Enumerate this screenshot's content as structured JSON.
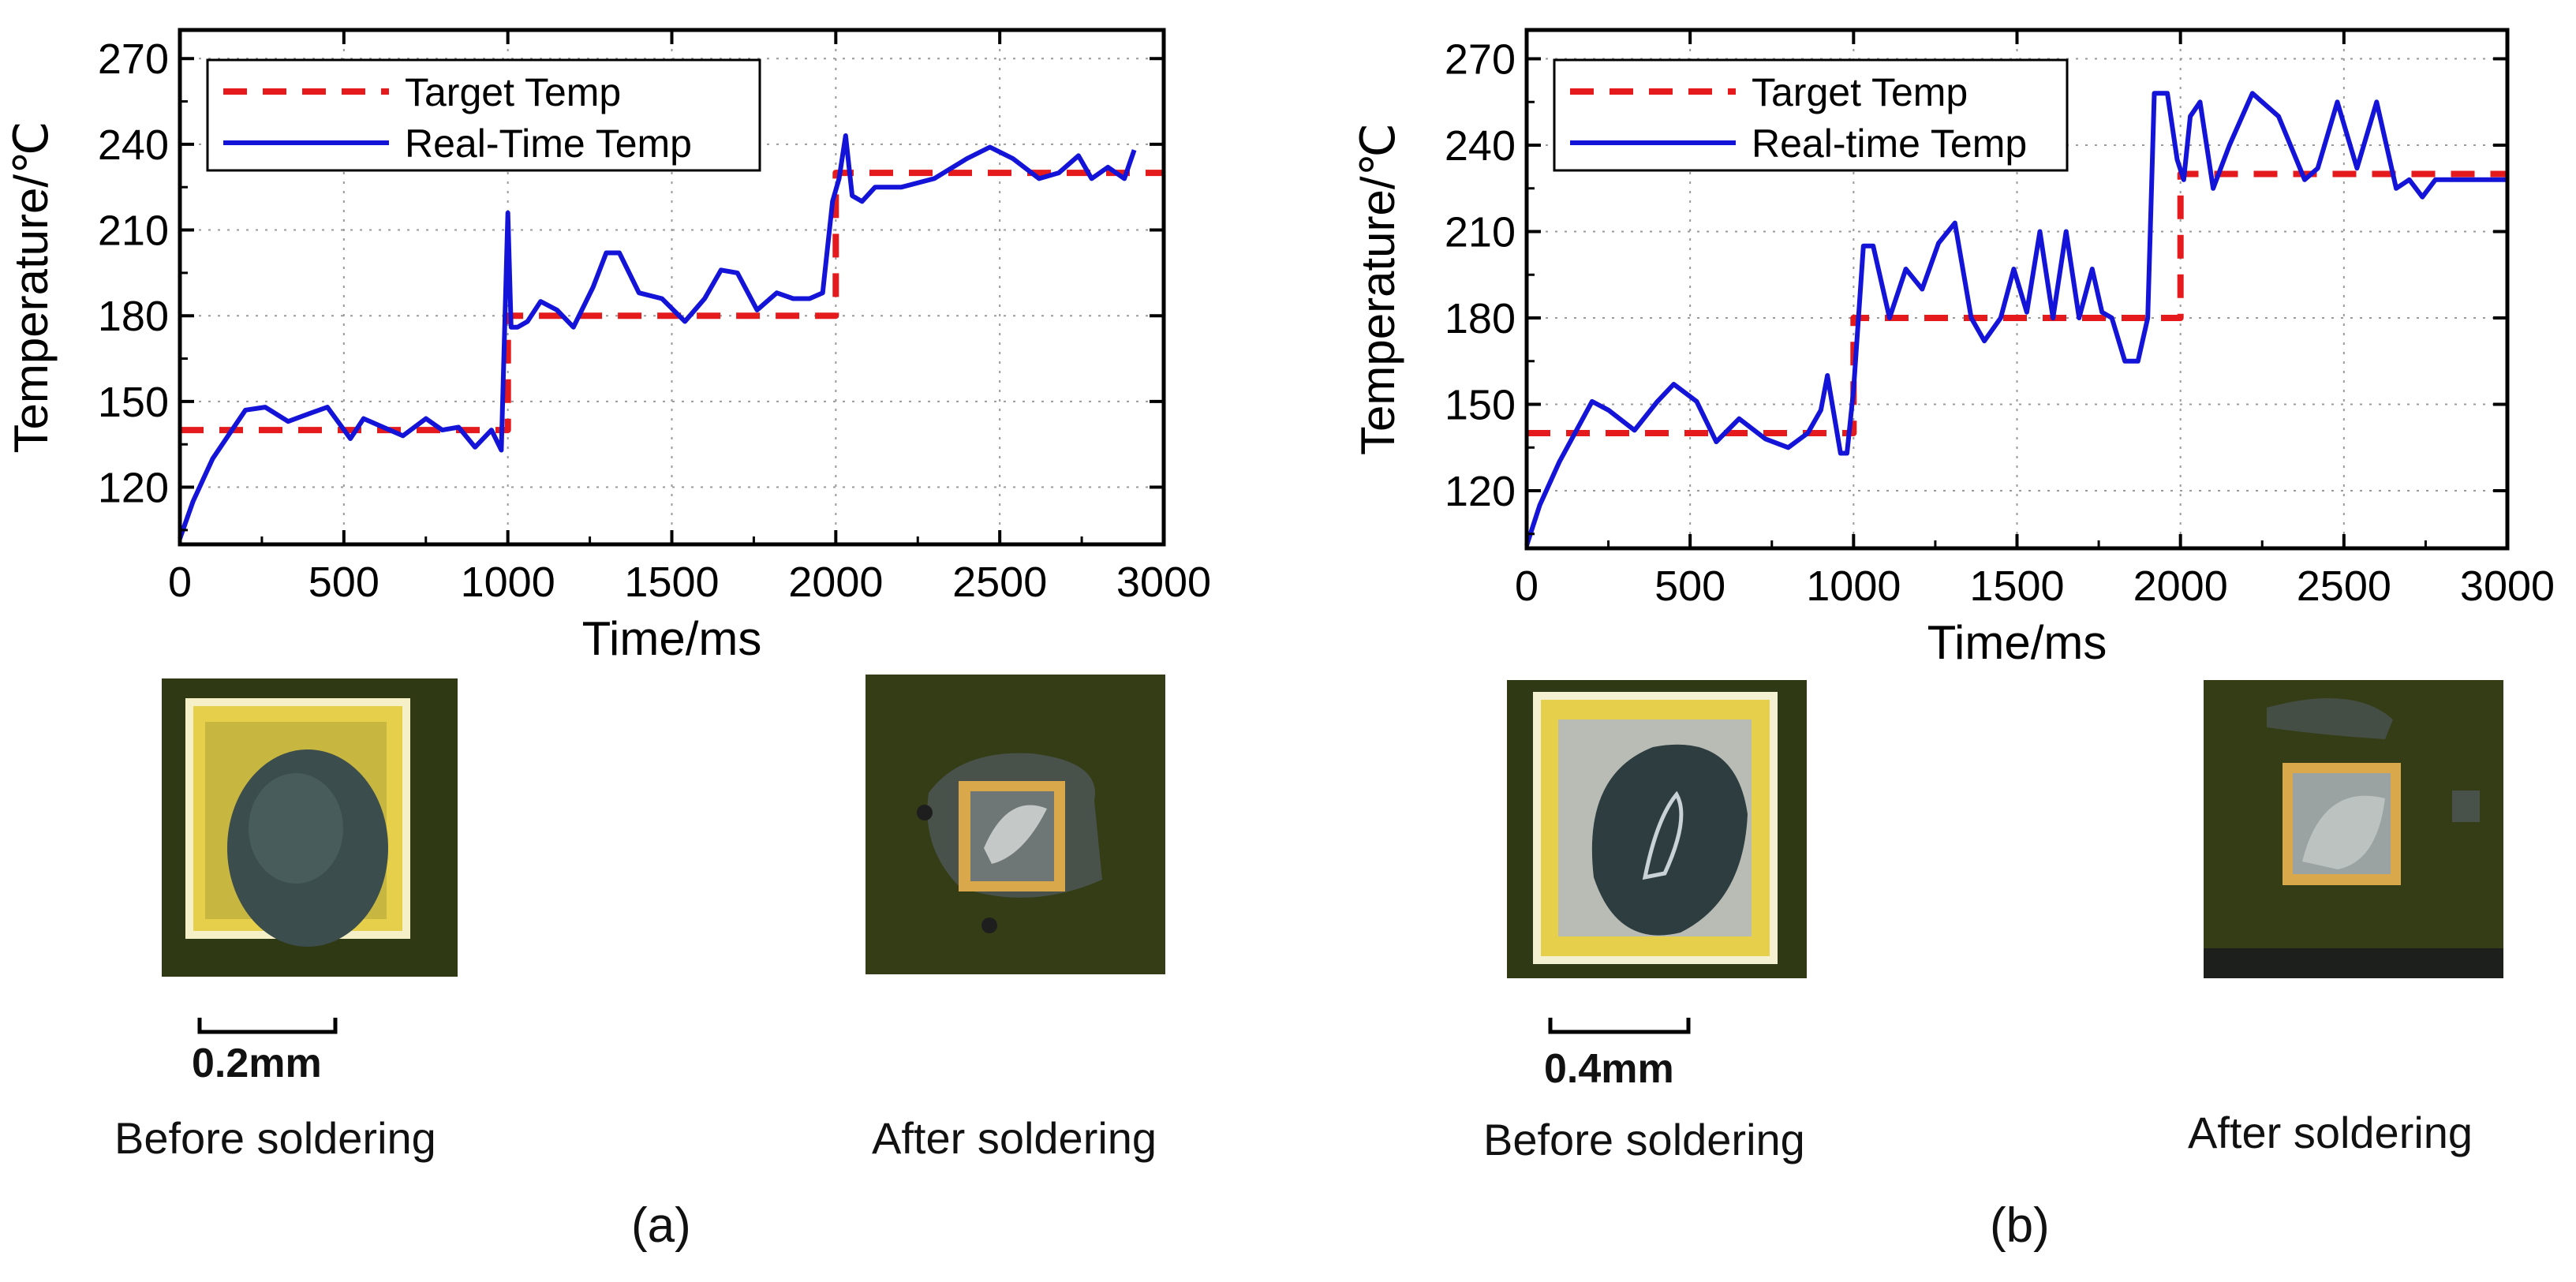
{
  "chart_data": [
    {
      "type": "line",
      "panel_label": "(a)",
      "xlabel": "Time/ms",
      "ylabel": "Temperature/℃",
      "xlim": [
        0,
        3000
      ],
      "ylim": [
        100,
        280
      ],
      "xticks": [
        0,
        500,
        1000,
        1500,
        2000,
        2500,
        3000
      ],
      "yticks": [
        120,
        150,
        180,
        210,
        240,
        270
      ],
      "grid": true,
      "legend_position": "top-left",
      "series": [
        {
          "name": "Target Temp",
          "style": "dashed",
          "color": "#e41a1c",
          "x": [
            0,
            1000,
            1000,
            2000,
            2000,
            3000
          ],
          "y": [
            140,
            140,
            180,
            180,
            230,
            230
          ]
        },
        {
          "name": "Real-Time Temp",
          "style": "solid",
          "color": "#1414d9",
          "x": [
            0,
            40,
            100,
            200,
            260,
            330,
            400,
            450,
            520,
            560,
            620,
            680,
            750,
            800,
            850,
            900,
            950,
            980,
            1000,
            1010,
            1030,
            1060,
            1100,
            1150,
            1200,
            1260,
            1300,
            1340,
            1400,
            1470,
            1540,
            1600,
            1650,
            1700,
            1760,
            1820,
            1870,
            1920,
            1960,
            1990,
            2010,
            2030,
            2050,
            2080,
            2120,
            2200,
            2300,
            2400,
            2470,
            2540,
            2620,
            2680,
            2740,
            2780,
            2830,
            2880,
            2910
          ],
          "y": [
            102,
            115,
            130,
            147,
            148,
            143,
            146,
            148,
            137,
            144,
            141,
            138,
            144,
            140,
            141,
            134,
            140,
            133,
            216,
            176,
            176,
            178,
            185,
            182,
            176,
            190,
            202,
            202,
            188,
            186,
            178,
            186,
            196,
            195,
            182,
            188,
            186,
            186,
            188,
            220,
            228,
            243,
            222,
            220,
            225,
            225,
            228,
            235,
            239,
            235,
            228,
            230,
            236,
            228,
            232,
            228,
            238
          ]
        }
      ]
    },
    {
      "type": "line",
      "panel_label": "(b)",
      "xlabel": "Time/ms",
      "ylabel": "Temperature/℃",
      "xlim": [
        0,
        3000
      ],
      "ylim": [
        100,
        280
      ],
      "xticks": [
        0,
        500,
        1000,
        1500,
        2000,
        2500,
        3000
      ],
      "yticks": [
        120,
        150,
        180,
        210,
        240,
        270
      ],
      "grid": true,
      "legend_position": "top-left",
      "series": [
        {
          "name": "Target Temp",
          "style": "dashed",
          "color": "#e41a1c",
          "x": [
            0,
            1000,
            1000,
            2000,
            2000,
            3000
          ],
          "y": [
            140,
            140,
            180,
            180,
            230,
            230
          ]
        },
        {
          "name": "Real-time Temp",
          "style": "solid",
          "color": "#1414d9",
          "x": [
            0,
            40,
            100,
            200,
            250,
            330,
            400,
            450,
            520,
            580,
            650,
            730,
            800,
            860,
            900,
            920,
            960,
            980,
            1000,
            1030,
            1060,
            1110,
            1160,
            1210,
            1260,
            1310,
            1360,
            1400,
            1450,
            1490,
            1530,
            1570,
            1610,
            1650,
            1690,
            1730,
            1760,
            1790,
            1830,
            1870,
            1900,
            1920,
            1960,
            1990,
            2010,
            2030,
            2060,
            2100,
            2150,
            2220,
            2300,
            2380,
            2420,
            2480,
            2540,
            2600,
            2660,
            2700,
            2740,
            2780,
            2820,
            2860,
            2900,
            3000
          ],
          "y": [
            101,
            115,
            130,
            151,
            148,
            141,
            151,
            157,
            151,
            137,
            145,
            138,
            135,
            140,
            148,
            160,
            133,
            133,
            155,
            205,
            205,
            180,
            197,
            190,
            206,
            213,
            180,
            172,
            180,
            197,
            182,
            210,
            180,
            210,
            180,
            197,
            182,
            180,
            165,
            165,
            180,
            258,
            258,
            235,
            228,
            250,
            255,
            225,
            240,
            258,
            250,
            228,
            232,
            255,
            232,
            255,
            225,
            228,
            222,
            228,
            228,
            228,
            228,
            228
          ]
        }
      ]
    }
  ],
  "photos": {
    "a_before": {
      "caption": "Before soldering",
      "scale": "0.2mm"
    },
    "a_after": {
      "caption": "After soldering"
    },
    "b_before": {
      "caption": "Before soldering",
      "scale": "0.4mm"
    },
    "b_after": {
      "caption": "After soldering"
    }
  },
  "colors": {
    "target": "#e41a1c",
    "realtime": "#1414d9",
    "pcb_dark": "#2f3a14",
    "pad_yellow": "#e6cf4a",
    "pad_silver": "#b9bcb5"
  }
}
